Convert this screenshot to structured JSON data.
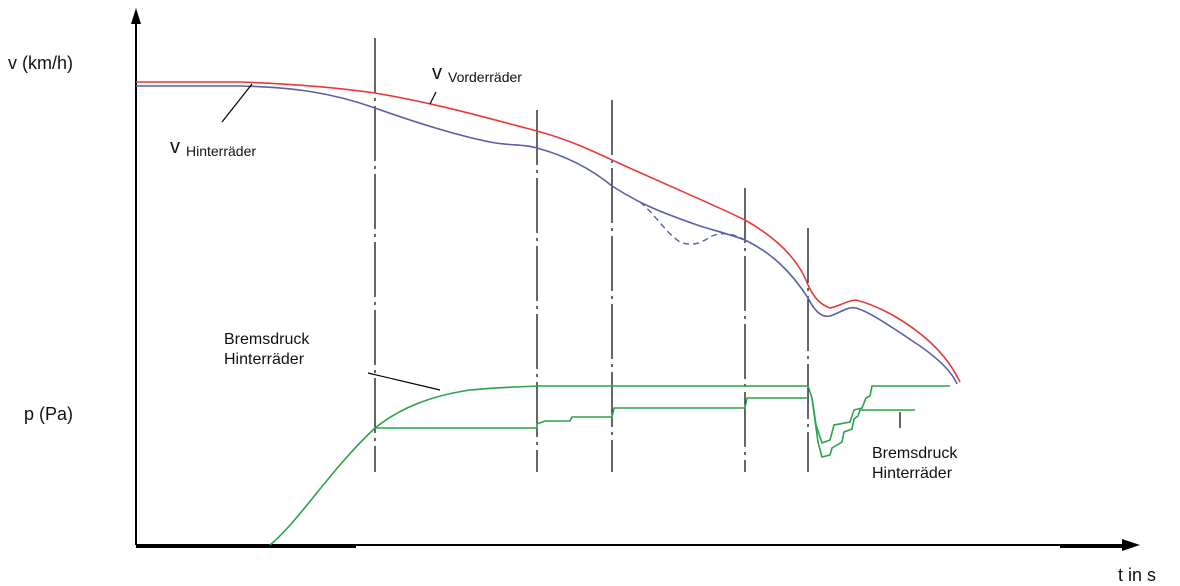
{
  "axes": {
    "y_upper_label": "v (km/h)",
    "y_lower_label": "p (Pa)",
    "x_label": "t in s"
  },
  "labels": {
    "v_front": {
      "symbol": "v",
      "subscript": "Vorderräder"
    },
    "v_rear": {
      "symbol": "v",
      "subscript": "Hinterräder"
    },
    "pressure_rear_1": {
      "line1": "Bremsdruck",
      "line2": "Hinterräder"
    },
    "pressure_rear_2": {
      "line1": "Bremsdruck",
      "line2": "Hinterräder"
    }
  },
  "colors": {
    "front_wheels": "#e8393c",
    "rear_wheels": "#5a5fa8",
    "brake_pressure": "#2aa24a",
    "axis": "#000000"
  }
}
